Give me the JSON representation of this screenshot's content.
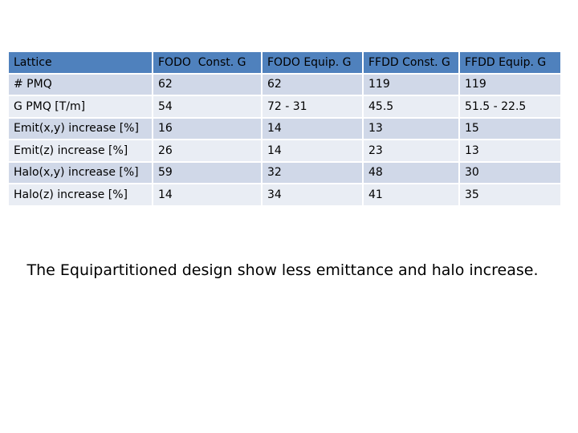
{
  "table": {
    "header": [
      "Lattice",
      "FODO  Const. G",
      "FODO Equip. G",
      "FFDD Const. G",
      "FFDD Equip. G"
    ],
    "rows": [
      [
        "# PMQ",
        "62",
        "62",
        "119",
        "119"
      ],
      [
        "G PMQ [T/m]",
        "54",
        "72 - 31",
        "45.5",
        "51.5 - 22.5"
      ],
      [
        "Emit(x,y) increase [%]",
        "16",
        "14",
        "13",
        "15"
      ],
      [
        "Emit(z) increase [%]",
        "26",
        "14",
        "23",
        "13"
      ],
      [
        "Halo(x,y) increase [%]",
        "59",
        "32",
        "48",
        "30"
      ],
      [
        "Halo(z) increase [%]",
        "14",
        "34",
        "41",
        "35"
      ]
    ]
  },
  "caption": "The Equipartitioned design show less emittance and halo increase."
}
